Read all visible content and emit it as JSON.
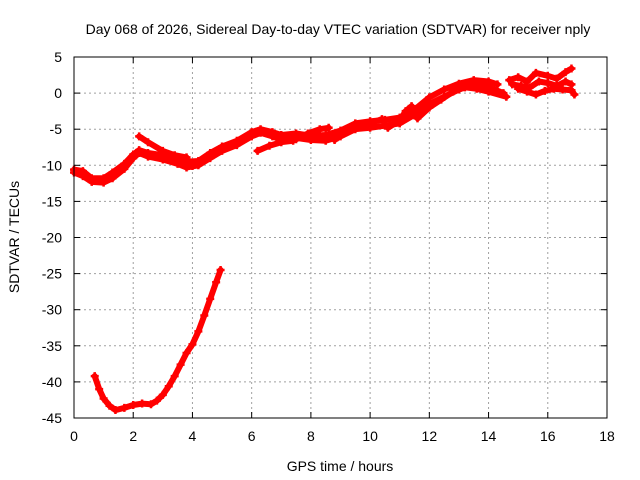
{
  "chart_data": {
    "type": "scatter",
    "title": "Day 068 of 2026, Sidereal Day-to-day VTEC variation (SDTVAR) for receiver nply",
    "xlabel": "GPS time / hours",
    "ylabel": "SDTVAR / TECUs",
    "xlim": [
      0,
      18
    ],
    "ylim": [
      -45,
      5
    ],
    "xticks": [
      0,
      2,
      4,
      6,
      8,
      10,
      12,
      14,
      16,
      18
    ],
    "yticks": [
      5,
      0,
      -5,
      -10,
      -15,
      -20,
      -25,
      -30,
      -35,
      -40,
      -45
    ],
    "grid": true,
    "series_color": "#ff0000",
    "series": [
      {
        "name": "main-band-lower",
        "points": [
          [
            0.0,
            -11.0
          ],
          [
            0.3,
            -11.5
          ],
          [
            0.6,
            -12.3
          ],
          [
            1.0,
            -12.4
          ],
          [
            1.3,
            -11.8
          ],
          [
            1.7,
            -10.5
          ],
          [
            2.0,
            -9.0
          ],
          [
            2.2,
            -8.3
          ],
          [
            2.5,
            -8.8
          ],
          [
            3.0,
            -9.2
          ],
          [
            3.5,
            -9.8
          ],
          [
            3.8,
            -10.3
          ],
          [
            4.2,
            -10.0
          ],
          [
            4.6,
            -9.0
          ],
          [
            5.0,
            -8.0
          ],
          [
            5.5,
            -7.2
          ],
          [
            6.0,
            -6.0
          ],
          [
            6.3,
            -5.5
          ],
          [
            6.7,
            -6.0
          ],
          [
            7.0,
            -6.5
          ],
          [
            7.5,
            -6.2
          ],
          [
            8.0,
            -6.5
          ],
          [
            8.5,
            -6.6
          ],
          [
            9.0,
            -6.0
          ],
          [
            9.5,
            -5.0
          ],
          [
            10.0,
            -4.8
          ],
          [
            10.5,
            -4.5
          ],
          [
            11.0,
            -4.2
          ],
          [
            11.5,
            -3.0
          ],
          [
            12.0,
            -1.5
          ],
          [
            12.5,
            -0.5
          ],
          [
            13.0,
            0.5
          ],
          [
            13.5,
            1.2
          ],
          [
            14.0,
            0.8
          ],
          [
            14.5,
            0.0
          ]
        ]
      },
      {
        "name": "main-band-upper",
        "points": [
          [
            0.0,
            -10.6
          ],
          [
            0.3,
            -10.8
          ],
          [
            0.6,
            -11.8
          ],
          [
            1.0,
            -11.8
          ],
          [
            1.3,
            -11.0
          ],
          [
            1.7,
            -9.8
          ],
          [
            2.0,
            -8.5
          ],
          [
            2.2,
            -7.9
          ],
          [
            2.5,
            -8.3
          ],
          [
            3.0,
            -8.6
          ],
          [
            3.5,
            -8.9
          ],
          [
            3.8,
            -9.5
          ],
          [
            4.2,
            -9.4
          ],
          [
            4.6,
            -8.3
          ],
          [
            5.0,
            -7.4
          ],
          [
            5.5,
            -6.6
          ],
          [
            6.0,
            -5.4
          ],
          [
            6.3,
            -5.0
          ],
          [
            6.7,
            -5.4
          ],
          [
            7.0,
            -5.8
          ],
          [
            7.5,
            -5.6
          ],
          [
            8.0,
            -5.9
          ],
          [
            8.5,
            -5.8
          ],
          [
            9.0,
            -5.2
          ],
          [
            9.5,
            -4.2
          ],
          [
            10.0,
            -3.9
          ],
          [
            10.5,
            -3.7
          ],
          [
            11.0,
            -3.4
          ],
          [
            11.5,
            -2.3
          ],
          [
            12.0,
            -0.6
          ],
          [
            12.5,
            0.5
          ],
          [
            13.0,
            1.3
          ],
          [
            13.5,
            1.8
          ],
          [
            14.0,
            1.6
          ],
          [
            14.3,
            1.2
          ]
        ]
      },
      {
        "name": "branch-2h",
        "points": [
          [
            2.2,
            -6.0
          ],
          [
            2.5,
            -6.8
          ],
          [
            3.0,
            -8.0
          ],
          [
            3.4,
            -8.6
          ],
          [
            3.8,
            -8.9
          ]
        ]
      },
      {
        "name": "branch-3h",
        "points": [
          [
            2.9,
            -8.3
          ],
          [
            3.3,
            -9.0
          ],
          [
            3.6,
            -9.6
          ],
          [
            4.0,
            -10.1
          ]
        ]
      },
      {
        "name": "branch-6h",
        "points": [
          [
            6.2,
            -8.0
          ],
          [
            6.6,
            -7.3
          ],
          [
            7.0,
            -6.8
          ],
          [
            7.4,
            -6.6
          ]
        ]
      },
      {
        "name": "branch-8h",
        "points": [
          [
            7.5,
            -6.4
          ],
          [
            7.9,
            -5.6
          ],
          [
            8.3,
            -5.0
          ],
          [
            8.6,
            -4.8
          ]
        ]
      },
      {
        "name": "branch-9h",
        "points": [
          [
            8.8,
            -6.5
          ],
          [
            9.2,
            -5.4
          ],
          [
            9.6,
            -4.7
          ],
          [
            10.0,
            -4.2
          ],
          [
            10.4,
            -3.6
          ]
        ]
      },
      {
        "name": "branch-11h",
        "points": [
          [
            10.6,
            -4.8
          ],
          [
            11.0,
            -3.8
          ],
          [
            11.2,
            -2.5
          ],
          [
            11.4,
            -1.8
          ]
        ]
      },
      {
        "name": "branch-12h",
        "points": [
          [
            11.6,
            -3.5
          ],
          [
            12.0,
            -2.0
          ],
          [
            12.4,
            -0.9
          ],
          [
            12.8,
            0.2
          ],
          [
            13.2,
            0.8
          ],
          [
            13.6,
            0.6
          ],
          [
            14.0,
            0.2
          ],
          [
            14.6,
            -0.5
          ]
        ]
      },
      {
        "name": "late-cluster-upper",
        "points": [
          [
            14.7,
            1.8
          ],
          [
            15.0,
            2.2
          ],
          [
            15.3,
            1.6
          ],
          [
            15.6,
            2.8
          ],
          [
            16.0,
            2.4
          ],
          [
            16.3,
            2.0
          ],
          [
            16.6,
            2.9
          ],
          [
            16.8,
            3.4
          ]
        ]
      },
      {
        "name": "late-cluster-middle",
        "points": [
          [
            14.8,
            1.2
          ],
          [
            15.1,
            1.0
          ],
          [
            15.4,
            0.8
          ],
          [
            15.7,
            1.6
          ],
          [
            16.0,
            1.4
          ],
          [
            16.3,
            1.0
          ],
          [
            16.6,
            1.6
          ],
          [
            16.8,
            1.2
          ]
        ]
      },
      {
        "name": "late-cluster-lower",
        "points": [
          [
            15.0,
            0.6
          ],
          [
            15.3,
            0.2
          ],
          [
            15.6,
            -0.2
          ],
          [
            15.9,
            0.3
          ],
          [
            16.2,
            0.6
          ],
          [
            16.5,
            0.5
          ],
          [
            16.8,
            0.4
          ],
          [
            16.9,
            -0.2
          ]
        ]
      },
      {
        "name": "early-low-arc",
        "points": [
          [
            0.7,
            -39.2
          ],
          [
            0.85,
            -41.0
          ],
          [
            1.0,
            -42.3
          ],
          [
            1.2,
            -43.3
          ],
          [
            1.4,
            -43.9
          ],
          [
            1.7,
            -43.6
          ],
          [
            2.0,
            -43.2
          ],
          [
            2.3,
            -43.0
          ],
          [
            2.6,
            -43.1
          ],
          [
            2.8,
            -42.6
          ],
          [
            3.0,
            -41.8
          ],
          [
            3.2,
            -40.6
          ],
          [
            3.4,
            -39.2
          ],
          [
            3.6,
            -37.6
          ],
          [
            3.8,
            -36.0
          ],
          [
            4.0,
            -34.8
          ],
          [
            4.2,
            -33.0
          ],
          [
            4.4,
            -30.8
          ],
          [
            4.6,
            -28.5
          ],
          [
            4.8,
            -26.2
          ],
          [
            4.95,
            -24.5
          ]
        ]
      }
    ]
  }
}
